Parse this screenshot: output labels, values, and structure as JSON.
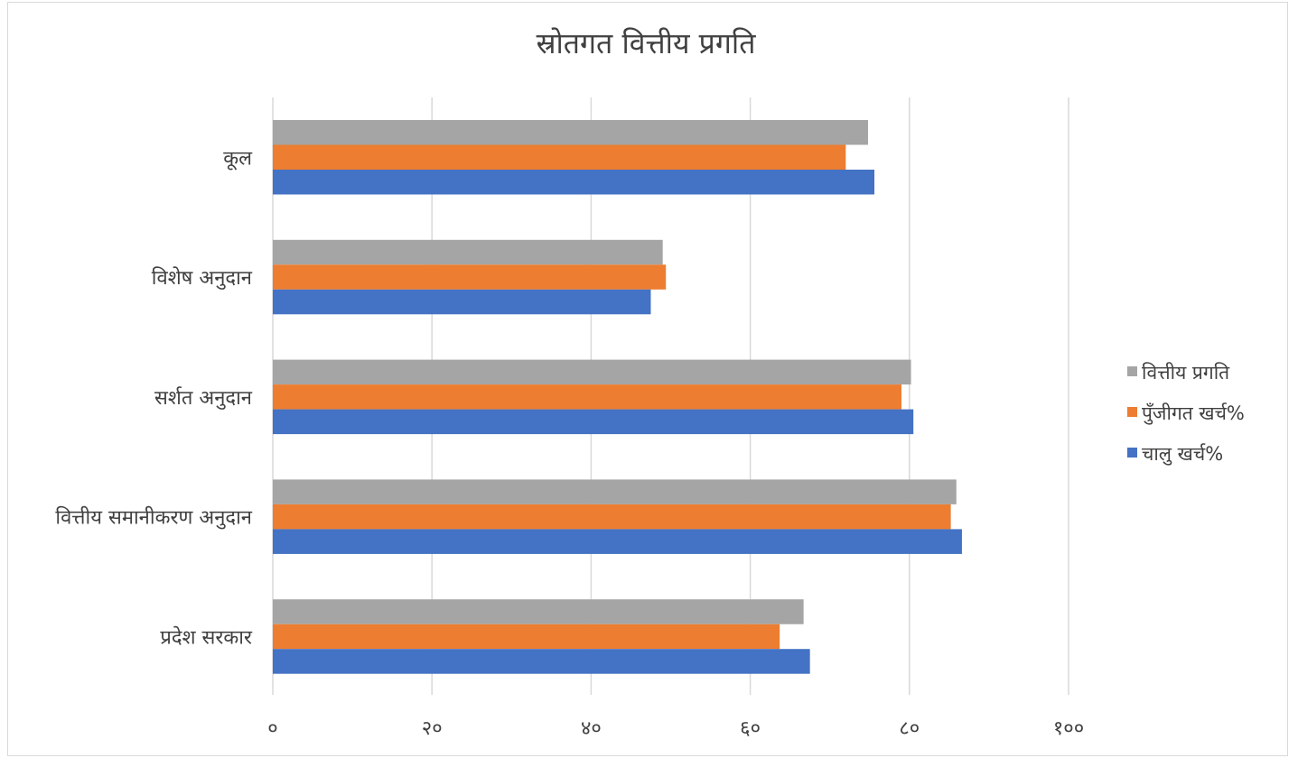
{
  "chart_data": {
    "type": "bar",
    "orientation": "horizontal",
    "title": "स्रोतगत वित्तीय प्रगति",
    "xlabel": "",
    "ylabel": "",
    "categories": [
      "कूल",
      "विशेष अनुदान",
      "सर्शत अनुदान",
      "वित्तीय समानीकरण अनुदान",
      "प्रदेश सरकार"
    ],
    "series": [
      {
        "name": "वित्तीय प्रगति",
        "color": "#a5a5a5",
        "values": [
          74.8,
          49.0,
          80.2,
          85.9,
          66.7
        ]
      },
      {
        "name": "पुँजीगत खर्च%",
        "color": "#ed7d31",
        "values": [
          72.0,
          49.4,
          79.0,
          85.2,
          63.7
        ]
      },
      {
        "name": "चालु खर्च%",
        "color": "#4472c4",
        "values": [
          75.6,
          47.5,
          80.5,
          86.6,
          67.5
        ]
      }
    ],
    "xlim": [
      0,
      100
    ],
    "xticks": [
      0,
      20,
      40,
      60,
      80,
      100
    ],
    "xtick_labels": [
      "०",
      "२०",
      "४०",
      "६०",
      "८०",
      "१००"
    ],
    "grid": true,
    "legend_position": "right"
  }
}
